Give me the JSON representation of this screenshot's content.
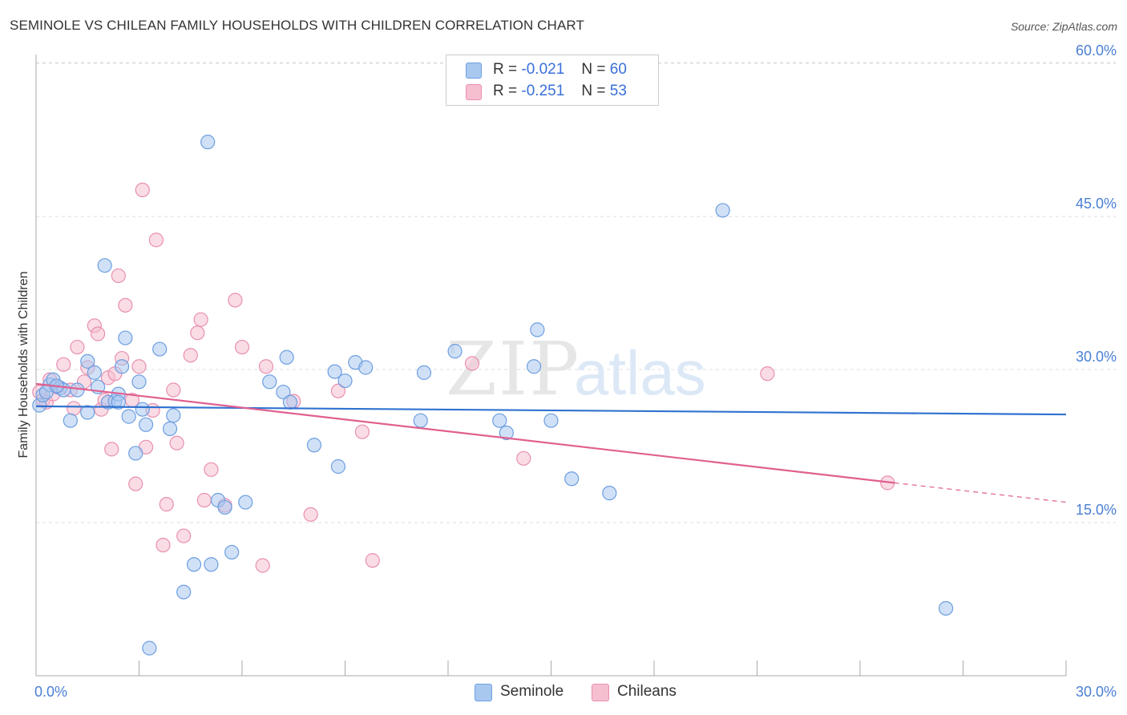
{
  "header": {
    "title": "SEMINOLE VS CHILEAN FAMILY HOUSEHOLDS WITH CHILDREN CORRELATION CHART",
    "source": "Source: ZipAtlas.com"
  },
  "watermark": {
    "zip": "ZIP",
    "atlas": "atlas"
  },
  "legend_top": {
    "rows": [
      {
        "r_label": "R =",
        "r_value": "-0.021",
        "n_label": "N =",
        "n_value": "60"
      },
      {
        "r_label": "R =",
        "r_value": "-0.251",
        "n_label": "N =",
        "n_value": "53"
      }
    ]
  },
  "legend_bottom": {
    "items": [
      "Seminole",
      "Chileans"
    ]
  },
  "colors": {
    "seminole_fill": "#a9c8f0",
    "seminole_stroke": "#6d9ee0",
    "seminole_line": "#2f72d0",
    "chileans_fill": "#f5bfd0",
    "chileans_stroke": "#e890b0",
    "chileans_line": "#e0608f",
    "tick_text": "#4a7fd4",
    "grid": "#dddddd"
  },
  "chart_data": {
    "type": "scatter",
    "title": "SEMINOLE VS CHILEAN FAMILY HOUSEHOLDS WITH CHILDREN CORRELATION CHART",
    "xlabel": "",
    "ylabel": "Family Households with Children",
    "xlim": [
      0,
      30
    ],
    "ylim": [
      0,
      61.5
    ],
    "x_tick_labels": [
      "0.0%",
      "30.0%"
    ],
    "y_ticks": [
      15,
      30,
      45,
      60
    ],
    "y_tick_labels": [
      "15.0%",
      "30.0%",
      "45.0%",
      "60.0%"
    ],
    "grid": true,
    "series": [
      {
        "name": "Seminole",
        "r": -0.021,
        "n": 60,
        "trend": {
          "x0": 0,
          "y0": 26.4,
          "x1": 30,
          "y1": 25.6
        },
        "points": [
          [
            0.1,
            26.5
          ],
          [
            0.2,
            27.5
          ],
          [
            0.4,
            28.5
          ],
          [
            0.5,
            29.0
          ],
          [
            0.7,
            28.2
          ],
          [
            0.8,
            28.0
          ],
          [
            1.0,
            25.0
          ],
          [
            1.2,
            28.0
          ],
          [
            1.5,
            30.8
          ],
          [
            1.5,
            25.8
          ],
          [
            1.7,
            29.7
          ],
          [
            1.8,
            28.3
          ],
          [
            2.0,
            40.2
          ],
          [
            2.1,
            26.8
          ],
          [
            2.3,
            26.9
          ],
          [
            2.4,
            27.6
          ],
          [
            2.5,
            30.3
          ],
          [
            2.6,
            33.1
          ],
          [
            2.7,
            25.4
          ],
          [
            2.9,
            21.8
          ],
          [
            3.0,
            28.8
          ],
          [
            3.1,
            26.1
          ],
          [
            3.2,
            24.6
          ],
          [
            3.6,
            32.0
          ],
          [
            3.9,
            24.2
          ],
          [
            4.0,
            25.5
          ],
          [
            4.3,
            8.2
          ],
          [
            4.6,
            10.9
          ],
          [
            5.0,
            52.3
          ],
          [
            5.1,
            10.9
          ],
          [
            5.3,
            17.2
          ],
          [
            5.5,
            16.5
          ],
          [
            5.7,
            12.1
          ],
          [
            6.1,
            17.0
          ],
          [
            6.8,
            28.8
          ],
          [
            7.2,
            27.8
          ],
          [
            7.3,
            31.2
          ],
          [
            7.4,
            26.8
          ],
          [
            8.1,
            22.6
          ],
          [
            8.7,
            29.8
          ],
          [
            8.8,
            20.5
          ],
          [
            9.0,
            28.9
          ],
          [
            9.3,
            30.7
          ],
          [
            9.6,
            30.2
          ],
          [
            11.2,
            25.0
          ],
          [
            11.3,
            29.7
          ],
          [
            12.2,
            31.8
          ],
          [
            13.5,
            25.0
          ],
          [
            13.7,
            23.8
          ],
          [
            14.6,
            33.9
          ],
          [
            14.5,
            30.3
          ],
          [
            15.0,
            25.0
          ],
          [
            15.6,
            19.3
          ],
          [
            16.7,
            17.9
          ],
          [
            20.0,
            45.6
          ],
          [
            26.5,
            6.6
          ],
          [
            3.3,
            2.7
          ],
          [
            2.4,
            26.8
          ],
          [
            0.3,
            27.8
          ],
          [
            0.6,
            28.4
          ]
        ]
      },
      {
        "name": "Chileans",
        "r": -0.251,
        "n": 53,
        "trend": {
          "x0": 0,
          "y0": 28.6,
          "x1": 25.0,
          "y1": 18.9,
          "dash_x1": 30,
          "dash_y1": 17.0
        },
        "points": [
          [
            0.1,
            27.8
          ],
          [
            0.2,
            27.0
          ],
          [
            0.3,
            26.8
          ],
          [
            0.4,
            29.0
          ],
          [
            0.5,
            27.6
          ],
          [
            0.6,
            28.3
          ],
          [
            0.8,
            30.5
          ],
          [
            1.0,
            28.0
          ],
          [
            1.2,
            32.2
          ],
          [
            1.4,
            28.8
          ],
          [
            1.5,
            30.2
          ],
          [
            1.7,
            34.3
          ],
          [
            1.8,
            33.5
          ],
          [
            1.9,
            26.1
          ],
          [
            2.0,
            27.0
          ],
          [
            2.1,
            29.2
          ],
          [
            2.2,
            22.2
          ],
          [
            2.3,
            29.6
          ],
          [
            2.4,
            39.2
          ],
          [
            2.5,
            31.1
          ],
          [
            2.6,
            36.3
          ],
          [
            2.8,
            27.0
          ],
          [
            2.9,
            18.8
          ],
          [
            3.0,
            30.3
          ],
          [
            3.1,
            47.6
          ],
          [
            3.2,
            22.4
          ],
          [
            3.4,
            26.0
          ],
          [
            3.5,
            42.7
          ],
          [
            3.7,
            12.8
          ],
          [
            3.8,
            16.8
          ],
          [
            4.0,
            28.0
          ],
          [
            4.1,
            22.8
          ],
          [
            4.3,
            13.7
          ],
          [
            4.5,
            31.4
          ],
          [
            4.7,
            33.6
          ],
          [
            4.8,
            34.9
          ],
          [
            4.9,
            17.2
          ],
          [
            5.1,
            20.2
          ],
          [
            5.5,
            16.7
          ],
          [
            5.8,
            36.8
          ],
          [
            6.0,
            32.2
          ],
          [
            6.6,
            10.8
          ],
          [
            6.7,
            30.3
          ],
          [
            7.5,
            26.9
          ],
          [
            8.0,
            15.8
          ],
          [
            8.8,
            27.9
          ],
          [
            9.5,
            23.9
          ],
          [
            9.8,
            11.3
          ],
          [
            12.7,
            30.6
          ],
          [
            14.2,
            21.3
          ],
          [
            21.3,
            29.6
          ],
          [
            24.8,
            18.9
          ],
          [
            1.1,
            26.2
          ]
        ]
      }
    ]
  }
}
